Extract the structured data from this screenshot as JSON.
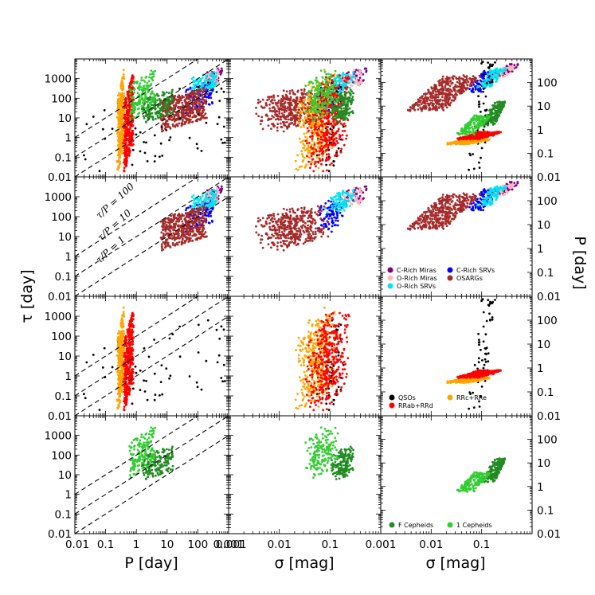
{
  "chart_data": {
    "type": "scatter",
    "layout": "4x3 grid of scatter panels sharing axes",
    "grid": false,
    "axes": {
      "col1_xlabel": "P [day]",
      "col2_xlabel": "σ [mag]",
      "col3_xlabel": "σ [mag]",
      "left_ylabel": "τ [day]",
      "right_ylabel": "P [day]",
      "x_ticks_col1": [
        "0.01",
        "0.1",
        "1",
        "10",
        "100",
        "0.001"
      ],
      "x_ticks_col2": [
        "0.001",
        "0.01",
        "0.1"
      ],
      "x_ticks_col3": [
        "0.001",
        "0.01",
        "0.1"
      ],
      "y_ticks_left": [
        "0.01",
        "0.1",
        "1",
        "10",
        "100",
        "1000"
      ],
      "y_ticks_right": [
        "0.01",
        "0.1",
        "1",
        "10",
        "100"
      ],
      "col1_xlim": [
        0.01,
        1000
      ],
      "col2_xlim": [
        0.001,
        1
      ],
      "col3_xlim": [
        0.001,
        1
      ],
      "left_ylim": [
        0.01,
        10000
      ],
      "right_ylim": [
        0.01,
        1000
      ],
      "scale": "log"
    },
    "annotations": [
      "τ/P = 100",
      "τ/P = 10",
      "τ/P = 1"
    ],
    "ratio_lines": [
      100,
      10,
      1
    ],
    "legends": [
      {
        "row": 1,
        "position": "lower-right",
        "entries": [
          {
            "label": "C-Rich Miras",
            "color": "#800080"
          },
          {
            "label": "C-Rich SRVs",
            "color": "#0000ff"
          },
          {
            "label": "O-Rich Miras",
            "color": "#ffb6c1"
          },
          {
            "label": "OSARGs",
            "color": "#a52a2a"
          },
          {
            "label": "O-Rich SRVs",
            "color": "#00e5ee"
          }
        ]
      },
      {
        "row": 2,
        "position": "lower-right",
        "entries": [
          {
            "label": "QSOs",
            "color": "#000000"
          },
          {
            "label": "RRc+RRe",
            "color": "#ffa500"
          },
          {
            "label": "RRab+RRd",
            "color": "#ff0000"
          }
        ]
      },
      {
        "row": 3,
        "position": "lower-right",
        "entries": [
          {
            "label": "F Cepheids",
            "color": "#228b22"
          },
          {
            "label": "1 Cepheids",
            "color": "#32cd32"
          }
        ]
      }
    ],
    "series": [
      {
        "name": "C-Rich Miras",
        "row": 1,
        "color": "#800080",
        "logP": [
          2.3,
          2.8
        ],
        "logTau": [
          2.6,
          3.6
        ],
        "logSigma": [
          -0.7,
          -0.25
        ]
      },
      {
        "name": "C-Rich SRVs",
        "row": 1,
        "color": "#0000ff",
        "logP": [
          1.6,
          2.5
        ],
        "logTau": [
          1.2,
          3.0
        ],
        "logSigma": [
          -1.3,
          -0.6
        ]
      },
      {
        "name": "O-Rich Miras",
        "row": 1,
        "color": "#ffb6c1",
        "logP": [
          2.2,
          2.7
        ],
        "logTau": [
          2.4,
          3.5
        ],
        "logSigma": [
          -0.8,
          -0.3
        ]
      },
      {
        "name": "O-Rich SRVs",
        "row": 1,
        "color": "#00e5ee",
        "logP": [
          1.8,
          2.6
        ],
        "logTau": [
          2.2,
          3.4
        ],
        "logSigma": [
          -1.1,
          -0.5
        ]
      },
      {
        "name": "OSARGs",
        "row": 1,
        "color": "#a52a2a",
        "logP": [
          0.8,
          2.3
        ],
        "logTau": [
          0.3,
          2.6
        ],
        "logSigma": [
          -2.5,
          -1.0
        ]
      },
      {
        "name": "QSOs",
        "row": 2,
        "color": "#000000",
        "logP": [
          -1.8,
          2.9
        ],
        "logTau": [
          -2.0,
          3.0
        ],
        "logSigma": [
          -1.3,
          -0.7
        ]
      },
      {
        "name": "RRc+RRe",
        "row": 2,
        "color": "#ffa500",
        "logP": [
          -0.6,
          -0.4
        ],
        "logTau": [
          -1.8,
          3.5
        ],
        "logSigma": [
          -1.7,
          -0.8
        ]
      },
      {
        "name": "RRab+RRd",
        "row": 2,
        "color": "#ff0000",
        "logP": [
          -0.4,
          -0.1
        ],
        "logTau": [
          -1.8,
          3.3
        ],
        "logSigma": [
          -1.5,
          -0.6
        ]
      },
      {
        "name": "F Cepheids",
        "row": 3,
        "color": "#228b22",
        "logP": [
          0.2,
          1.2
        ],
        "logTau": [
          0.7,
          2.5
        ],
        "logSigma": [
          -1.0,
          -0.5
        ]
      },
      {
        "name": "1 Cepheids",
        "row": 3,
        "color": "#32cd32",
        "logP": [
          -0.2,
          0.6
        ],
        "logTau": [
          0.8,
          3.5
        ],
        "logSigma": [
          -1.5,
          -0.8
        ]
      }
    ]
  }
}
